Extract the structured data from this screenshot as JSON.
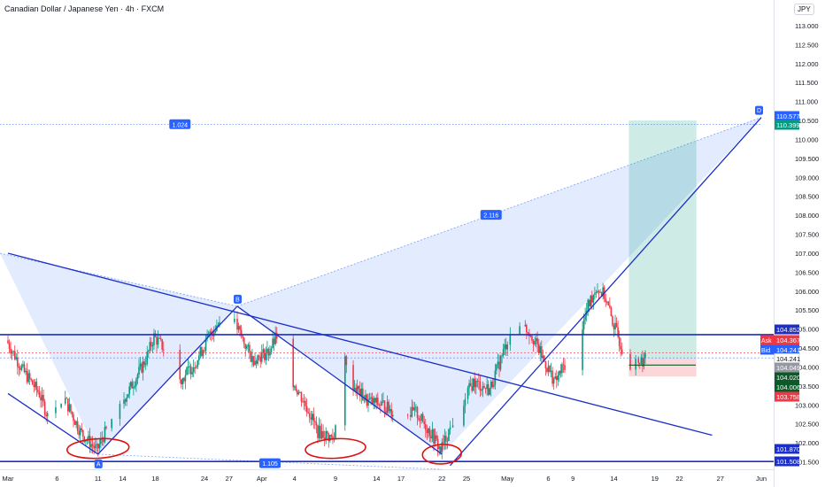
{
  "header": {
    "title": "Canadian Dollar / Japanese Yen · 4h · FXCM",
    "currency": "JPY"
  },
  "chart_data": {
    "type": "candlestick",
    "title": "Canadian Dollar / Japanese Yen · 4h · FXCM",
    "symbol": "CADJPY",
    "timeframe": "4h",
    "y_axis": {
      "range": [
        101.35,
        113.35
      ],
      "ticks": [
        "113.000",
        "112.500",
        "112.000",
        "111.500",
        "111.000",
        "110.500",
        "110.000",
        "109.500",
        "109.000",
        "108.500",
        "108.000",
        "107.500",
        "107.000",
        "106.500",
        "106.000",
        "105.500",
        "105.000",
        "104.500",
        "104.000",
        "103.500",
        "103.000",
        "102.500",
        "102.000",
        "101.500"
      ]
    },
    "x_axis": {
      "ticks": [
        {
          "label": "Mar",
          "day": 0
        },
        {
          "label": "6",
          "day": 6
        },
        {
          "label": "11",
          "day": 11
        },
        {
          "label": "14",
          "day": 14
        },
        {
          "label": "18",
          "day": 18
        },
        {
          "label": "24",
          "day": 24
        },
        {
          "label": "27",
          "day": 27
        },
        {
          "label": "Apr",
          "day": 31
        },
        {
          "label": "4",
          "day": 35
        },
        {
          "label": "9",
          "day": 40
        },
        {
          "label": "14",
          "day": 45
        },
        {
          "label": "17",
          "day": 48
        },
        {
          "label": "22",
          "day": 53
        },
        {
          "label": "25",
          "day": 56
        },
        {
          "label": "May",
          "day": 61
        },
        {
          "label": "6",
          "day": 66
        },
        {
          "label": "9",
          "day": 69
        },
        {
          "label": "14",
          "day": 74
        },
        {
          "label": "19",
          "day": 79
        },
        {
          "label": "22",
          "day": 82
        },
        {
          "label": "27",
          "day": 87
        },
        {
          "label": "Jun",
          "day": 92
        }
      ]
    },
    "price_path": [
      {
        "day": 0,
        "price": 104.7
      },
      {
        "day": 2,
        "price": 103.9
      },
      {
        "day": 4,
        "price": 103.3
      },
      {
        "day": 5,
        "price": 102.7
      },
      {
        "day": 7,
        "price": 103.2
      },
      {
        "day": 9,
        "price": 102.3
      },
      {
        "day": 11,
        "price": 101.8
      },
      {
        "day": 13,
        "price": 102.7
      },
      {
        "day": 15,
        "price": 103.4
      },
      {
        "day": 17,
        "price": 104.2
      },
      {
        "day": 18,
        "price": 104.8
      },
      {
        "day": 20,
        "price": 104.3
      },
      {
        "day": 21,
        "price": 103.6
      },
      {
        "day": 23,
        "price": 104.1
      },
      {
        "day": 25,
        "price": 104.9
      },
      {
        "day": 27,
        "price": 105.5
      },
      {
        "day": 28,
        "price": 105.1
      },
      {
        "day": 30,
        "price": 104.2
      },
      {
        "day": 32,
        "price": 104.4
      },
      {
        "day": 33,
        "price": 104.8
      },
      {
        "day": 35,
        "price": 103.6
      },
      {
        "day": 37,
        "price": 102.8
      },
      {
        "day": 38,
        "price": 102.3
      },
      {
        "day": 40,
        "price": 102.1
      },
      {
        "day": 41,
        "price": 104.7
      },
      {
        "day": 42,
        "price": 103.6
      },
      {
        "day": 44,
        "price": 103.1
      },
      {
        "day": 46,
        "price": 103.0
      },
      {
        "day": 48,
        "price": 102.7
      },
      {
        "day": 50,
        "price": 102.8
      },
      {
        "day": 52,
        "price": 102.2
      },
      {
        "day": 53,
        "price": 101.8
      },
      {
        "day": 55,
        "price": 102.8
      },
      {
        "day": 57,
        "price": 103.6
      },
      {
        "day": 59,
        "price": 103.4
      },
      {
        "day": 61,
        "price": 104.6
      },
      {
        "day": 62,
        "price": 105.3
      },
      {
        "day": 64,
        "price": 104.9
      },
      {
        "day": 66,
        "price": 104.0
      },
      {
        "day": 67,
        "price": 103.6
      },
      {
        "day": 69,
        "price": 104.4
      },
      {
        "day": 70,
        "price": 104.8
      },
      {
        "day": 71,
        "price": 105.6
      },
      {
        "day": 72,
        "price": 106.1
      },
      {
        "day": 73,
        "price": 105.9
      },
      {
        "day": 74,
        "price": 105.2
      },
      {
        "day": 75,
        "price": 104.6
      },
      {
        "day": 76,
        "price": 104.1
      },
      {
        "day": 78,
        "price": 104.2
      }
    ],
    "pattern_points": [
      {
        "label": "A",
        "day": 11,
        "price": 101.7
      },
      {
        "label": "B",
        "day": 28,
        "price": 105.6
      },
      {
        "label": "D",
        "day": 92,
        "price": 110.58
      }
    ],
    "ratio_labels": [
      {
        "text": "1.024",
        "day": 21,
        "price": 110.39
      },
      {
        "text": "2.116",
        "day": 59,
        "price": 108.0
      },
      {
        "text": "1.105",
        "day": 32,
        "price": 101.45
      }
    ],
    "horizontal_lines": [
      {
        "price": 104.852,
        "color": "#1c2fc9"
      },
      {
        "price": 101.508,
        "color": "#1c2fc9"
      }
    ],
    "trend_lines": [
      {
        "from": {
          "day": 0,
          "price": 107.0
        },
        "to": {
          "day": 86,
          "price": 102.2
        }
      },
      {
        "from": {
          "day": 0,
          "price": 103.3
        },
        "to": {
          "day": 11,
          "price": 101.7
        }
      },
      {
        "from": {
          "day": 11,
          "price": 101.7
        },
        "to": {
          "day": 28,
          "price": 105.6
        }
      },
      {
        "from": {
          "day": 28,
          "price": 105.6
        },
        "to": {
          "day": 53,
          "price": 101.7
        }
      },
      {
        "from": {
          "day": 54,
          "price": 101.4
        },
        "to": {
          "day": 92,
          "price": 110.58
        }
      }
    ],
    "position": {
      "entry": 104.2,
      "take_profit": 110.5,
      "stop_loss": 103.75,
      "day_start": 78,
      "day_end": 83
    },
    "price_labels": [
      {
        "text": "110.577",
        "price": 110.577,
        "bg": "#2962ff",
        "fg": "#ffffff"
      },
      {
        "text": "110.399",
        "price": 110.399,
        "bg": "#089981",
        "fg": "#ffffff"
      },
      {
        "text": "104.852",
        "price": 104.852,
        "bg": "#1c2fc9",
        "fg": "#ffffff"
      },
      {
        "text": "104.367",
        "price": 104.367,
        "bg": "#f23645",
        "fg": "#ffffff",
        "tag": "Ask"
      },
      {
        "text": "104.241",
        "price": 104.241,
        "bg": "#2962ff",
        "fg": "#ffffff",
        "tag": "Bid"
      },
      {
        "text": "104.241",
        "price": 104.241,
        "bg": "#ffffff",
        "fg": "#131722"
      },
      {
        "text": "104.049",
        "price": 104.049,
        "bg": "#9598a1",
        "fg": "#ffffff"
      },
      {
        "text": "104.020",
        "price": 104.02,
        "bg": "#0b5a28",
        "fg": "#ffffff"
      },
      {
        "text": "104.006",
        "price": 104.006,
        "bg": "#0b5a28",
        "fg": "#ffffff"
      },
      {
        "text": "103.758",
        "price": 103.758,
        "bg": "#f23645",
        "fg": "#ffffff"
      },
      {
        "text": "101.870",
        "price": 101.87,
        "bg": "#1c2fc9",
        "fg": "#ffffff"
      },
      {
        "text": "101.508",
        "price": 101.508,
        "bg": "#1c2fc9",
        "fg": "#ffffff"
      }
    ],
    "colors": {
      "up": "#089981",
      "down": "#f23645",
      "pattern_fill": "#2962ff",
      "line": "#1c2fc9",
      "circle": "#e01010"
    }
  }
}
